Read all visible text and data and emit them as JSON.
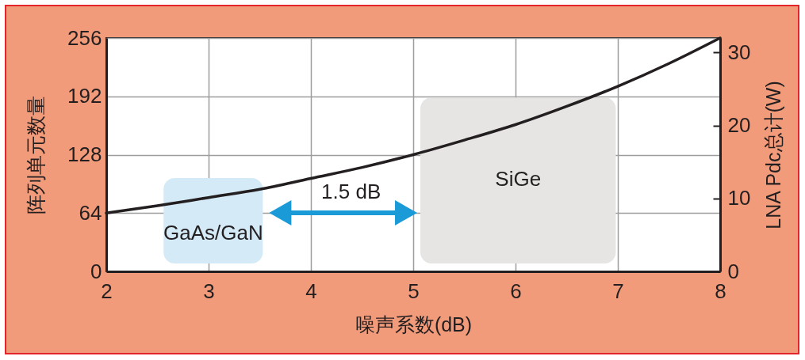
{
  "chart_data": {
    "type": "line",
    "xlabel": "噪声系数(dB)",
    "ylabel": "阵列单元数量",
    "y2label": "LNA Pdc总计(W)",
    "x": [
      2,
      2.5,
      3,
      3.5,
      4,
      4.5,
      5,
      5.5,
      6,
      6.5,
      7,
      7.5,
      8
    ],
    "series": [
      {
        "color": "#231f20",
        "values": [
          64,
          72,
          81,
          90,
          102,
          114,
          128,
          144,
          161,
          181,
          203,
          228,
          256
        ]
      }
    ],
    "xlim": [
      2,
      8
    ],
    "xticks": [
      2,
      3,
      4,
      5,
      6,
      7,
      8
    ],
    "ylim": [
      0,
      256
    ],
    "yticks": [
      0,
      64,
      128,
      192,
      256
    ],
    "y2lim": [
      0,
      32
    ],
    "y2ticks": [
      0,
      10,
      20,
      30
    ],
    "bands": [
      {
        "axis": "x",
        "from": 2.56,
        "to": 3.53,
        "label": "GaAs/GaN",
        "color": "#d4eaf7"
      },
      {
        "axis": "x",
        "from": 5.07,
        "to": 6.98,
        "label": "SiGe",
        "color": "#e6e5e4"
      }
    ],
    "annotations": [
      "1.5 dB"
    ],
    "grid": true,
    "line_style": "solid"
  }
}
